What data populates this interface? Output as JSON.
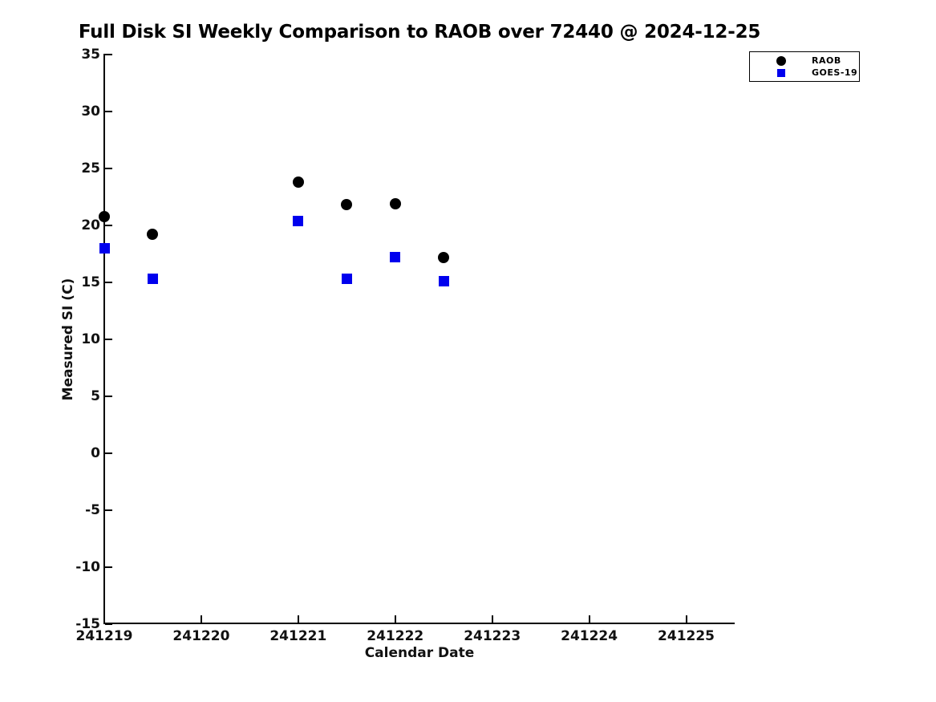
{
  "figure": {
    "background": "#ffffff",
    "axis_color": "#000000"
  },
  "chart_data": {
    "type": "scatter",
    "title": "Full Disk SI Weekly Comparison to RAOB over 72440 @ 2024-12-25",
    "xlabel": "Calendar Date",
    "ylabel": "Measured SI (C)",
    "xlim": [
      241219,
      241225.5
    ],
    "ylim": [
      -15,
      35
    ],
    "xticks": [
      241219,
      241220,
      241221,
      241222,
      241223,
      241224,
      241225
    ],
    "yticks": [
      35,
      30,
      25,
      20,
      15,
      10,
      5,
      0,
      -5,
      -10,
      -15
    ],
    "grid": false,
    "legend": {
      "position": "top-right",
      "entries": [
        "RAOB",
        "GOES-19"
      ]
    },
    "x": [
      241219,
      241219.5,
      241221,
      241221.5,
      241222,
      241222.5
    ],
    "series": [
      {
        "name": "RAOB",
        "marker": "circle",
        "color": "#000000",
        "values": [
          20.8,
          19.2,
          23.8,
          21.8,
          21.9,
          17.2
        ]
      },
      {
        "name": "GOES-19",
        "marker": "square",
        "color": "#0000ee",
        "values": [
          18.0,
          15.3,
          20.4,
          15.3,
          17.2,
          15.1
        ]
      }
    ]
  }
}
